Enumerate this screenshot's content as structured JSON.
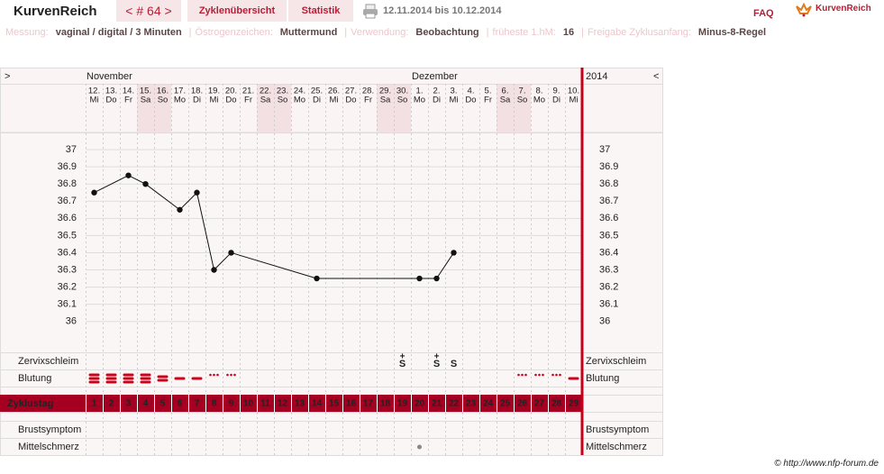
{
  "header": {
    "brand": "KurvenReich",
    "cycle_nav": "< # 64 >",
    "tabs": [
      "Zyklenübersicht",
      "Statistik"
    ],
    "date_range": "12.11.2014 bis 10.12.2014",
    "faq": "FAQ",
    "logo_text": "KurvenReich"
  },
  "settings": {
    "separator": "|",
    "items": [
      {
        "label": "Messung:",
        "value": "vaginal / digital / 3 Minuten"
      },
      {
        "label": "Östrogenzeichen:",
        "value": "Muttermund"
      },
      {
        "label": "Verwendung:",
        "value": "Beobachtung"
      },
      {
        "label": "früheste 1.hM:",
        "value": "16"
      },
      {
        "label": "Freigabe Zyklusanfang:",
        "value": "Minus-8-Regel"
      }
    ]
  },
  "chart": {
    "nav_left": ">",
    "nav_right": "<",
    "year": "2014",
    "months": [
      "November",
      "Dezember"
    ],
    "dates": [
      "12.",
      "13.",
      "14.",
      "15.",
      "16.",
      "17.",
      "18.",
      "19.",
      "20.",
      "21.",
      "22.",
      "23.",
      "24.",
      "25.",
      "26.",
      "27.",
      "28.",
      "29.",
      "30.",
      "1.",
      "2.",
      "3.",
      "4.",
      "5.",
      "6.",
      "7.",
      "8.",
      "9.",
      "10."
    ],
    "weekdays": [
      "Mi",
      "Do",
      "Fr",
      "Sa",
      "So",
      "Mo",
      "Di",
      "Mi",
      "Do",
      "Fr",
      "Sa",
      "So",
      "Mo",
      "Di",
      "Mi",
      "Do",
      "Fr",
      "Sa",
      "So",
      "Mo",
      "Di",
      "Mi",
      "Do",
      "Fr",
      "Sa",
      "So",
      "Mo",
      "Di",
      "Mi"
    ],
    "temperatures": [
      36.75,
      null,
      36.85,
      36.8,
      null,
      36.65,
      36.75,
      36.3,
      36.4,
      null,
      null,
      null,
      null,
      36.25,
      null,
      null,
      null,
      null,
      null,
      36.25,
      36.25,
      36.4,
      null,
      null,
      null,
      null,
      null,
      null,
      null
    ],
    "ylim": [
      35.82,
      37.1
    ],
    "yticks": [
      36,
      36.1,
      36.2,
      36.3,
      36.4,
      36.5,
      36.6,
      36.7,
      36.8,
      36.9,
      37
    ],
    "zervix_label": "Zervixschleim",
    "zervix": [
      null,
      null,
      null,
      null,
      null,
      null,
      null,
      null,
      null,
      null,
      null,
      null,
      null,
      null,
      null,
      null,
      null,
      null,
      {
        "top": "+",
        "letter": "S"
      },
      null,
      {
        "top": "+",
        "letter": "S"
      },
      {
        "letter": "S"
      },
      null,
      null,
      null,
      null,
      null,
      null,
      null
    ],
    "bleeding_label": "Blutung",
    "cycle_label": "Zyklustag",
    "cycle_days": [
      1,
      2,
      3,
      4,
      5,
      6,
      7,
      8,
      9,
      10,
      11,
      12,
      13,
      14,
      15,
      16,
      17,
      18,
      19,
      20,
      21,
      22,
      23,
      24,
      25,
      26,
      27,
      28,
      29
    ],
    "breast_label": "Brustsymptom",
    "pain_label": "Mittelschmerz"
  },
  "footer": "© http://www.nfp-forum.de"
}
